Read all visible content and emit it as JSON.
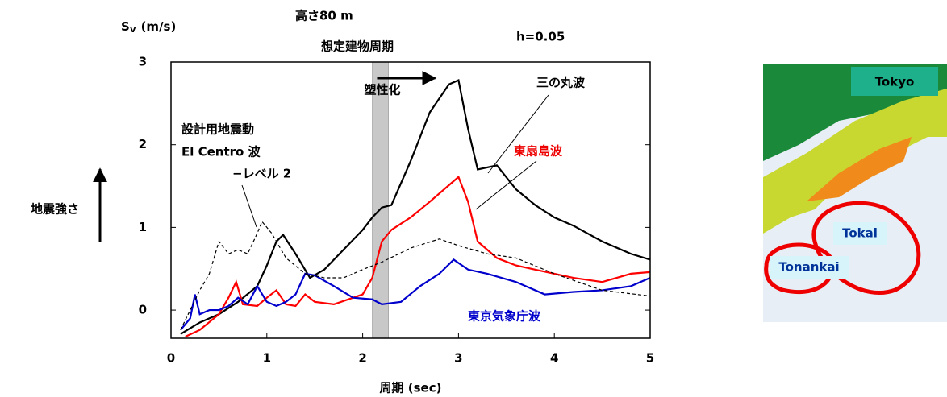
{
  "chart_data": {
    "type": "line",
    "title_lines": [
      "高さ80 m",
      "想定建物周期"
    ],
    "damping": "h=0.05",
    "y_label": {
      "symbol": "S",
      "sub": "V",
      "unit": "(m/s)"
    },
    "x_label": "周期  (sec)",
    "side_label": "地震強さ",
    "band": {
      "label": "塑性化",
      "range": [
        2.1,
        2.27
      ]
    },
    "xlim": [
      0,
      5
    ],
    "xticks": [
      0,
      1,
      2,
      3,
      4,
      5
    ],
    "ylim": [
      -0.34,
      3
    ],
    "yticks": [
      0,
      1,
      2,
      3
    ],
    "series": [
      {
        "name": [
          "三の丸波"
        ],
        "color": "#000000",
        "dash": false,
        "x": [
          0.1,
          0.3,
          0.5,
          0.7,
          0.9,
          1.0,
          1.1,
          1.17,
          1.3,
          1.45,
          1.6,
          1.8,
          2.0,
          2.1,
          2.2,
          2.3,
          2.5,
          2.7,
          2.9,
          3.0,
          3.1,
          3.2,
          3.4,
          3.6,
          3.8,
          4.0,
          4.2,
          4.5,
          4.8,
          5.0
        ],
        "values": [
          -0.29,
          -0.15,
          -0.05,
          0.1,
          0.29,
          0.54,
          0.83,
          0.91,
          0.68,
          0.39,
          0.49,
          0.73,
          0.97,
          1.12,
          1.24,
          1.27,
          1.8,
          2.39,
          2.73,
          2.78,
          2.19,
          1.7,
          1.75,
          1.46,
          1.27,
          1.12,
          1.02,
          0.83,
          0.68,
          0.61
        ]
      },
      {
        "name": [
          "東扇島波"
        ],
        "color": "#ff0000",
        "dash": false,
        "x": [
          0.15,
          0.3,
          0.5,
          0.6,
          0.68,
          0.75,
          0.9,
          1.0,
          1.1,
          1.2,
          1.3,
          1.4,
          1.5,
          1.7,
          1.9,
          2.0,
          2.1,
          2.2,
          2.3,
          2.5,
          2.7,
          2.9,
          3.0,
          3.1,
          3.2,
          3.4,
          3.6,
          3.8,
          4.0,
          4.2,
          4.5,
          4.8,
          5.0
        ],
        "values": [
          -0.32,
          -0.24,
          -0.05,
          0.15,
          0.34,
          0.07,
          0.05,
          0.15,
          0.24,
          0.07,
          0.05,
          0.19,
          0.1,
          0.07,
          0.15,
          0.19,
          0.39,
          0.83,
          0.97,
          1.12,
          1.31,
          1.51,
          1.61,
          1.31,
          0.83,
          0.63,
          0.54,
          0.49,
          0.44,
          0.39,
          0.34,
          0.44,
          0.46
        ]
      },
      {
        "name": [
          "東京気象庁波"
        ],
        "color": "#0000cc",
        "dash": false,
        "x": [
          0.1,
          0.2,
          0.25,
          0.3,
          0.4,
          0.5,
          0.6,
          0.7,
          0.8,
          0.9,
          1.0,
          1.1,
          1.2,
          1.3,
          1.4,
          1.5,
          1.7,
          1.9,
          2.1,
          2.2,
          2.4,
          2.6,
          2.8,
          2.95,
          3.1,
          3.3,
          3.6,
          3.9,
          4.2,
          4.5,
          4.8,
          5.0
        ],
        "values": [
          -0.24,
          -0.1,
          0.19,
          -0.05,
          0,
          0,
          0.05,
          0.15,
          0.07,
          0.29,
          0.1,
          0.05,
          0.1,
          0.19,
          0.44,
          0.42,
          0.29,
          0.15,
          0.13,
          0.07,
          0.1,
          0.29,
          0.44,
          0.61,
          0.49,
          0.44,
          0.34,
          0.19,
          0.22,
          0.24,
          0.29,
          0.39
        ]
      },
      {
        "name": [
          "設計用地震動",
          "El Centro  波",
          "−レベル 2"
        ],
        "color": "#000000",
        "dash": true,
        "x": [
          0.1,
          0.2,
          0.3,
          0.4,
          0.5,
          0.6,
          0.7,
          0.8,
          0.9,
          0.95,
          1.05,
          1.2,
          1.4,
          1.6,
          1.8,
          2.0,
          2.2,
          2.5,
          2.8,
          3.0,
          3.3,
          3.6,
          4.0,
          4.5,
          5.0
        ],
        "values": [
          -0.24,
          0,
          0.24,
          0.44,
          0.83,
          0.68,
          0.73,
          0.68,
          0.93,
          1.07,
          0.93,
          0.63,
          0.44,
          0.39,
          0.39,
          0.49,
          0.58,
          0.75,
          0.86,
          0.78,
          0.68,
          0.63,
          0.44,
          0.24,
          0.17
        ]
      }
    ]
  },
  "map": {
    "labels": [
      "Tokyo",
      "Tokai",
      "Tonankai"
    ]
  }
}
